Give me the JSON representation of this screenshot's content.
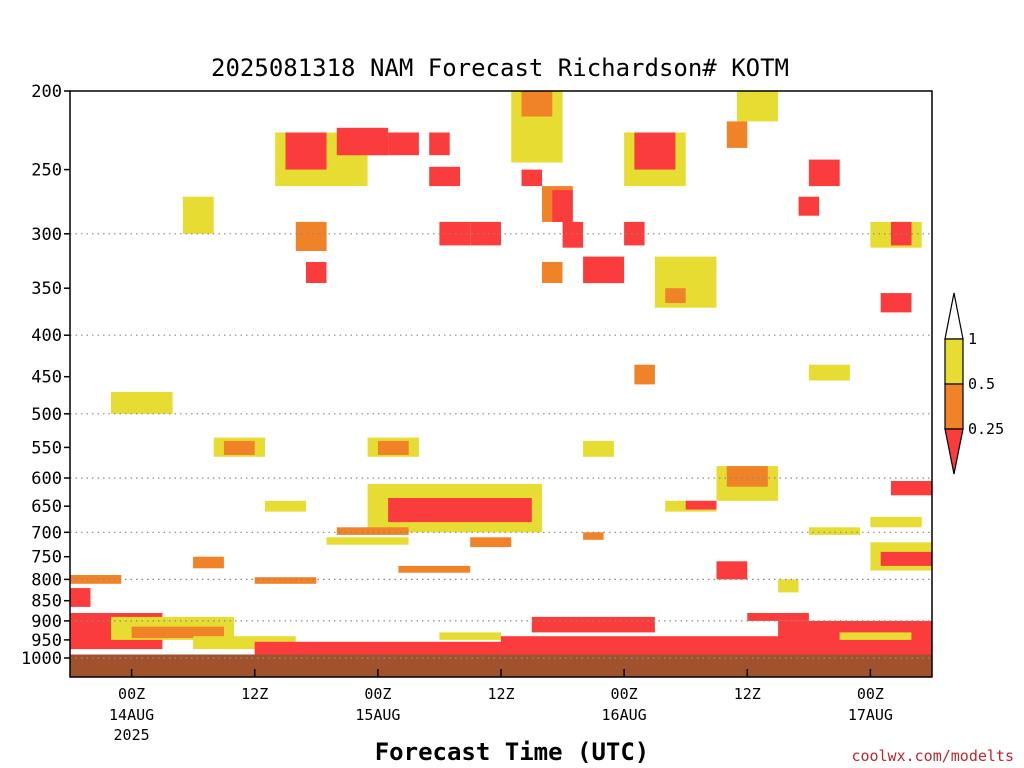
{
  "chart_data": {
    "type": "heatmap",
    "title": "2025081318 NAM Forecast Richardson# KOTM",
    "xlabel": "Forecast Time (UTC)",
    "credit": "coolwx.com/modelts",
    "y_axis": {
      "quantity": "pressure (hPa)",
      "range": [
        1000,
        200
      ],
      "scale": "log-pressure",
      "ticks": [
        200,
        250,
        300,
        350,
        400,
        450,
        500,
        550,
        600,
        650,
        700,
        750,
        800,
        850,
        900,
        950,
        1000
      ]
    },
    "x_axis": {
      "start": "2025-08-13T18:00Z",
      "end": "2025-08-17T06:00Z",
      "ticks": [
        {
          "time": "2025-08-14T00:00Z",
          "label": "00Z",
          "label2": "14AUG",
          "label3": "2025"
        },
        {
          "time": "2025-08-14T12:00Z",
          "label": "12Z",
          "label2": "",
          "label3": ""
        },
        {
          "time": "2025-08-15T00:00Z",
          "label": "00Z",
          "label2": "15AUG",
          "label3": ""
        },
        {
          "time": "2025-08-15T12:00Z",
          "label": "12Z",
          "label2": "",
          "label3": ""
        },
        {
          "time": "2025-08-16T00:00Z",
          "label": "00Z",
          "label2": "16AUG",
          "label3": ""
        },
        {
          "time": "2025-08-16T12:00Z",
          "label": "12Z",
          "label2": "",
          "label3": ""
        },
        {
          "time": "2025-08-17T00:00Z",
          "label": "00Z",
          "label2": "17AUG",
          "label3": ""
        }
      ]
    },
    "grid": {
      "horizontal": true,
      "levels": [
        300,
        400,
        500,
        600,
        700,
        800,
        900,
        1000
      ]
    },
    "legend": {
      "placement": "right",
      "levels": [
        {
          "label": "1",
          "color": "#ffffff"
        },
        {
          "label": "0.5",
          "color": "#e6dc32"
        },
        {
          "label": "0.25",
          "color": "#f08228"
        },
        {
          "label": "",
          "color": "#fa3c3c"
        }
      ]
    },
    "colors": {
      "high": "#e6dc32",
      "mid": "#f08228",
      "low": "#fa3c3c",
      "ground": "#a0522d"
    },
    "ground_level": 1000,
    "ground_note": "below-ground shading under ~990 hPa",
    "regions": [
      {
        "t0": "2025-08-14T14:00Z",
        "t1": "2025-08-14T23:00Z",
        "p0": 225,
        "p1": 262,
        "cat": "high"
      },
      {
        "t0": "2025-08-14T15:00Z",
        "t1": "2025-08-14T19:00Z",
        "p0": 225,
        "p1": 250,
        "cat": "low"
      },
      {
        "t0": "2025-08-14T20:00Z",
        "t1": "2025-08-15T01:00Z",
        "p0": 222,
        "p1": 240,
        "cat": "low"
      },
      {
        "t0": "2025-08-15T01:00Z",
        "t1": "2025-08-15T04:00Z",
        "p0": 225,
        "p1": 240,
        "cat": "low"
      },
      {
        "t0": "2025-08-15T05:00Z",
        "t1": "2025-08-15T07:00Z",
        "p0": 225,
        "p1": 240,
        "cat": "low"
      },
      {
        "t0": "2025-08-15T05:00Z",
        "t1": "2025-08-15T08:00Z",
        "p0": 248,
        "p1": 262,
        "cat": "low"
      },
      {
        "t0": "2025-08-15T13:00Z",
        "t1": "2025-08-15T18:00Z",
        "p0": 200,
        "p1": 245,
        "cat": "high"
      },
      {
        "t0": "2025-08-15T14:00Z",
        "t1": "2025-08-15T17:00Z",
        "p0": 200,
        "p1": 215,
        "cat": "mid"
      },
      {
        "t0": "2025-08-15T14:00Z",
        "t1": "2025-08-15T16:00Z",
        "p0": 250,
        "p1": 262,
        "cat": "low"
      },
      {
        "t0": "2025-08-15T16:00Z",
        "t1": "2025-08-15T19:00Z",
        "p0": 262,
        "p1": 290,
        "cat": "mid"
      },
      {
        "t0": "2025-08-15T17:00Z",
        "t1": "2025-08-15T19:00Z",
        "p0": 265,
        "p1": 290,
        "cat": "low"
      },
      {
        "t0": "2025-08-16T00:00Z",
        "t1": "2025-08-16T06:00Z",
        "p0": 225,
        "p1": 262,
        "cat": "high"
      },
      {
        "t0": "2025-08-16T01:00Z",
        "t1": "2025-08-16T05:00Z",
        "p0": 225,
        "p1": 250,
        "cat": "low"
      },
      {
        "t0": "2025-08-16T11:00Z",
        "t1": "2025-08-16T15:00Z",
        "p0": 200,
        "p1": 218,
        "cat": "high"
      },
      {
        "t0": "2025-08-16T10:00Z",
        "t1": "2025-08-16T12:00Z",
        "p0": 218,
        "p1": 235,
        "cat": "mid"
      },
      {
        "t0": "2025-08-16T18:00Z",
        "t1": "2025-08-16T21:00Z",
        "p0": 243,
        "p1": 262,
        "cat": "low"
      },
      {
        "t0": "2025-08-16T17:00Z",
        "t1": "2025-08-16T19:00Z",
        "p0": 270,
        "p1": 285,
        "cat": "low"
      },
      {
        "t0": "2025-08-14T05:00Z",
        "t1": "2025-08-14T08:00Z",
        "p0": 270,
        "p1": 300,
        "cat": "high"
      },
      {
        "t0": "2025-08-14T16:00Z",
        "t1": "2025-08-14T19:00Z",
        "p0": 290,
        "p1": 315,
        "cat": "mid"
      },
      {
        "t0": "2025-08-14T17:00Z",
        "t1": "2025-08-14T19:00Z",
        "p0": 325,
        "p1": 345,
        "cat": "low"
      },
      {
        "t0": "2025-08-15T06:00Z",
        "t1": "2025-08-15T09:00Z",
        "p0": 290,
        "p1": 310,
        "cat": "low"
      },
      {
        "t0": "2025-08-15T09:00Z",
        "t1": "2025-08-15T12:00Z",
        "p0": 290,
        "p1": 310,
        "cat": "low"
      },
      {
        "t0": "2025-08-15T18:00Z",
        "t1": "2025-08-15T20:00Z",
        "p0": 290,
        "p1": 312,
        "cat": "low"
      },
      {
        "t0": "2025-08-15T20:00Z",
        "t1": "2025-08-16T00:00Z",
        "p0": 320,
        "p1": 345,
        "cat": "low"
      },
      {
        "t0": "2025-08-16T00:00Z",
        "t1": "2025-08-16T02:00Z",
        "p0": 290,
        "p1": 310,
        "cat": "low"
      },
      {
        "t0": "2025-08-17T00:00Z",
        "t1": "2025-08-17T05:00Z",
        "p0": 290,
        "p1": 312,
        "cat": "high"
      },
      {
        "t0": "2025-08-17T02:00Z",
        "t1": "2025-08-17T04:00Z",
        "p0": 290,
        "p1": 310,
        "cat": "low"
      },
      {
        "t0": "2025-08-15T16:00Z",
        "t1": "2025-08-15T18:00Z",
        "p0": 325,
        "p1": 345,
        "cat": "mid"
      },
      {
        "t0": "2025-08-16T03:00Z",
        "t1": "2025-08-16T09:00Z",
        "p0": 320,
        "p1": 370,
        "cat": "high"
      },
      {
        "t0": "2025-08-16T04:00Z",
        "t1": "2025-08-16T06:00Z",
        "p0": 350,
        "p1": 365,
        "cat": "mid"
      },
      {
        "t0": "2025-08-17T01:00Z",
        "t1": "2025-08-17T04:00Z",
        "p0": 355,
        "p1": 375,
        "cat": "low"
      },
      {
        "t0": "2025-08-13T22:00Z",
        "t1": "2025-08-14T04:00Z",
        "p0": 470,
        "p1": 500,
        "cat": "high"
      },
      {
        "t0": "2025-08-16T18:00Z",
        "t1": "2025-08-16T22:00Z",
        "p0": 435,
        "p1": 455,
        "cat": "high"
      },
      {
        "t0": "2025-08-16T01:00Z",
        "t1": "2025-08-16T03:00Z",
        "p0": 435,
        "p1": 460,
        "cat": "mid"
      },
      {
        "t0": "2025-08-14T08:00Z",
        "t1": "2025-08-14T13:00Z",
        "p0": 535,
        "p1": 565,
        "cat": "high"
      },
      {
        "t0": "2025-08-14T09:00Z",
        "t1": "2025-08-14T12:00Z",
        "p0": 540,
        "p1": 562,
        "cat": "mid"
      },
      {
        "t0": "2025-08-14T23:00Z",
        "t1": "2025-08-15T04:00Z",
        "p0": 535,
        "p1": 565,
        "cat": "high"
      },
      {
        "t0": "2025-08-15T00:00Z",
        "t1": "2025-08-15T03:00Z",
        "p0": 540,
        "p1": 562,
        "cat": "mid"
      },
      {
        "t0": "2025-08-15T20:00Z",
        "t1": "2025-08-15T23:00Z",
        "p0": 540,
        "p1": 565,
        "cat": "high"
      },
      {
        "t0": "2025-08-16T09:00Z",
        "t1": "2025-08-16T15:00Z",
        "p0": 580,
        "p1": 640,
        "cat": "high"
      },
      {
        "t0": "2025-08-16T10:00Z",
        "t1": "2025-08-16T14:00Z",
        "p0": 580,
        "p1": 615,
        "cat": "mid"
      },
      {
        "t0": "2025-08-16T04:00Z",
        "t1": "2025-08-16T09:00Z",
        "p0": 640,
        "p1": 660,
        "cat": "high"
      },
      {
        "t0": "2025-08-16T06:00Z",
        "t1": "2025-08-16T09:00Z",
        "p0": 640,
        "p1": 656,
        "cat": "low"
      },
      {
        "t0": "2025-08-17T02:00Z",
        "t1": "2025-08-17T06:00Z",
        "p0": 605,
        "p1": 630,
        "cat": "low"
      },
      {
        "t0": "2025-08-14T23:00Z",
        "t1": "2025-08-15T16:00Z",
        "p0": 610,
        "p1": 700,
        "cat": "high"
      },
      {
        "t0": "2025-08-15T01:00Z",
        "t1": "2025-08-15T15:00Z",
        "p0": 635,
        "p1": 680,
        "cat": "low"
      },
      {
        "t0": "2025-08-14T13:00Z",
        "t1": "2025-08-14T17:00Z",
        "p0": 640,
        "p1": 660,
        "cat": "high"
      },
      {
        "t0": "2025-08-17T00:00Z",
        "t1": "2025-08-17T05:00Z",
        "p0": 670,
        "p1": 690,
        "cat": "high"
      },
      {
        "t0": "2025-08-14T20:00Z",
        "t1": "2025-08-15T03:00Z",
        "p0": 690,
        "p1": 705,
        "cat": "mid"
      },
      {
        "t0": "2025-08-15T20:00Z",
        "t1": "2025-08-15T22:00Z",
        "p0": 700,
        "p1": 715,
        "cat": "mid"
      },
      {
        "t0": "2025-08-17T00:00Z",
        "t1": "2025-08-17T06:00Z",
        "p0": 720,
        "p1": 780,
        "cat": "high"
      },
      {
        "t0": "2025-08-17T01:00Z",
        "t1": "2025-08-17T06:00Z",
        "p0": 740,
        "p1": 770,
        "cat": "low"
      },
      {
        "t0": "2025-08-16T18:00Z",
        "t1": "2025-08-16T23:00Z",
        "p0": 690,
        "p1": 705,
        "cat": "high"
      },
      {
        "t0": "2025-08-14T19:00Z",
        "t1": "2025-08-15T03:00Z",
        "p0": 710,
        "p1": 725,
        "cat": "high"
      },
      {
        "t0": "2025-08-15T02:00Z",
        "t1": "2025-08-15T09:00Z",
        "p0": 770,
        "p1": 785,
        "cat": "mid"
      },
      {
        "t0": "2025-08-15T09:00Z",
        "t1": "2025-08-15T13:00Z",
        "p0": 710,
        "p1": 730,
        "cat": "mid"
      },
      {
        "t0": "2025-08-13T18:00Z",
        "t1": "2025-08-13T23:00Z",
        "p0": 790,
        "p1": 810,
        "cat": "mid"
      },
      {
        "t0": "2025-08-14T06:00Z",
        "t1": "2025-08-14T09:00Z",
        "p0": 750,
        "p1": 775,
        "cat": "mid"
      },
      {
        "t0": "2025-08-14T12:00Z",
        "t1": "2025-08-14T18:00Z",
        "p0": 795,
        "p1": 810,
        "cat": "mid"
      },
      {
        "t0": "2025-08-16T09:00Z",
        "t1": "2025-08-16T12:00Z",
        "p0": 760,
        "p1": 800,
        "cat": "low"
      },
      {
        "t0": "2025-08-16T15:00Z",
        "t1": "2025-08-16T17:00Z",
        "p0": 800,
        "p1": 830,
        "cat": "high"
      },
      {
        "t0": "2025-08-13T18:00Z",
        "t1": "2025-08-13T20:00Z",
        "p0": 820,
        "p1": 865,
        "cat": "low"
      },
      {
        "t0": "2025-08-13T18:00Z",
        "t1": "2025-08-14T03:00Z",
        "p0": 880,
        "p1": 975,
        "cat": "low"
      },
      {
        "t0": "2025-08-13T22:00Z",
        "t1": "2025-08-14T10:00Z",
        "p0": 890,
        "p1": 950,
        "cat": "high"
      },
      {
        "t0": "2025-08-14T00:00Z",
        "t1": "2025-08-14T09:00Z",
        "p0": 915,
        "p1": 945,
        "cat": "mid"
      },
      {
        "t0": "2025-08-14T06:00Z",
        "t1": "2025-08-14T16:00Z",
        "p0": 940,
        "p1": 975,
        "cat": "high"
      },
      {
        "t0": "2025-08-14T12:00Z",
        "t1": "2025-08-15T12:00Z",
        "p0": 955,
        "p1": 990,
        "cat": "low"
      },
      {
        "t0": "2025-08-15T06:00Z",
        "t1": "2025-08-15T12:00Z",
        "p0": 930,
        "p1": 950,
        "cat": "high"
      },
      {
        "t0": "2025-08-15T12:00Z",
        "t1": "2025-08-16T20:00Z",
        "p0": 940,
        "p1": 990,
        "cat": "low"
      },
      {
        "t0": "2025-08-15T15:00Z",
        "t1": "2025-08-16T03:00Z",
        "p0": 890,
        "p1": 930,
        "cat": "low"
      },
      {
        "t0": "2025-08-16T12:00Z",
        "t1": "2025-08-16T18:00Z",
        "p0": 880,
        "p1": 900,
        "cat": "low"
      },
      {
        "t0": "2025-08-16T15:00Z",
        "t1": "2025-08-17T06:00Z",
        "p0": 900,
        "p1": 990,
        "cat": "low"
      },
      {
        "t0": "2025-08-16T21:00Z",
        "t1": "2025-08-17T04:00Z",
        "p0": 930,
        "p1": 950,
        "cat": "high"
      }
    ]
  }
}
